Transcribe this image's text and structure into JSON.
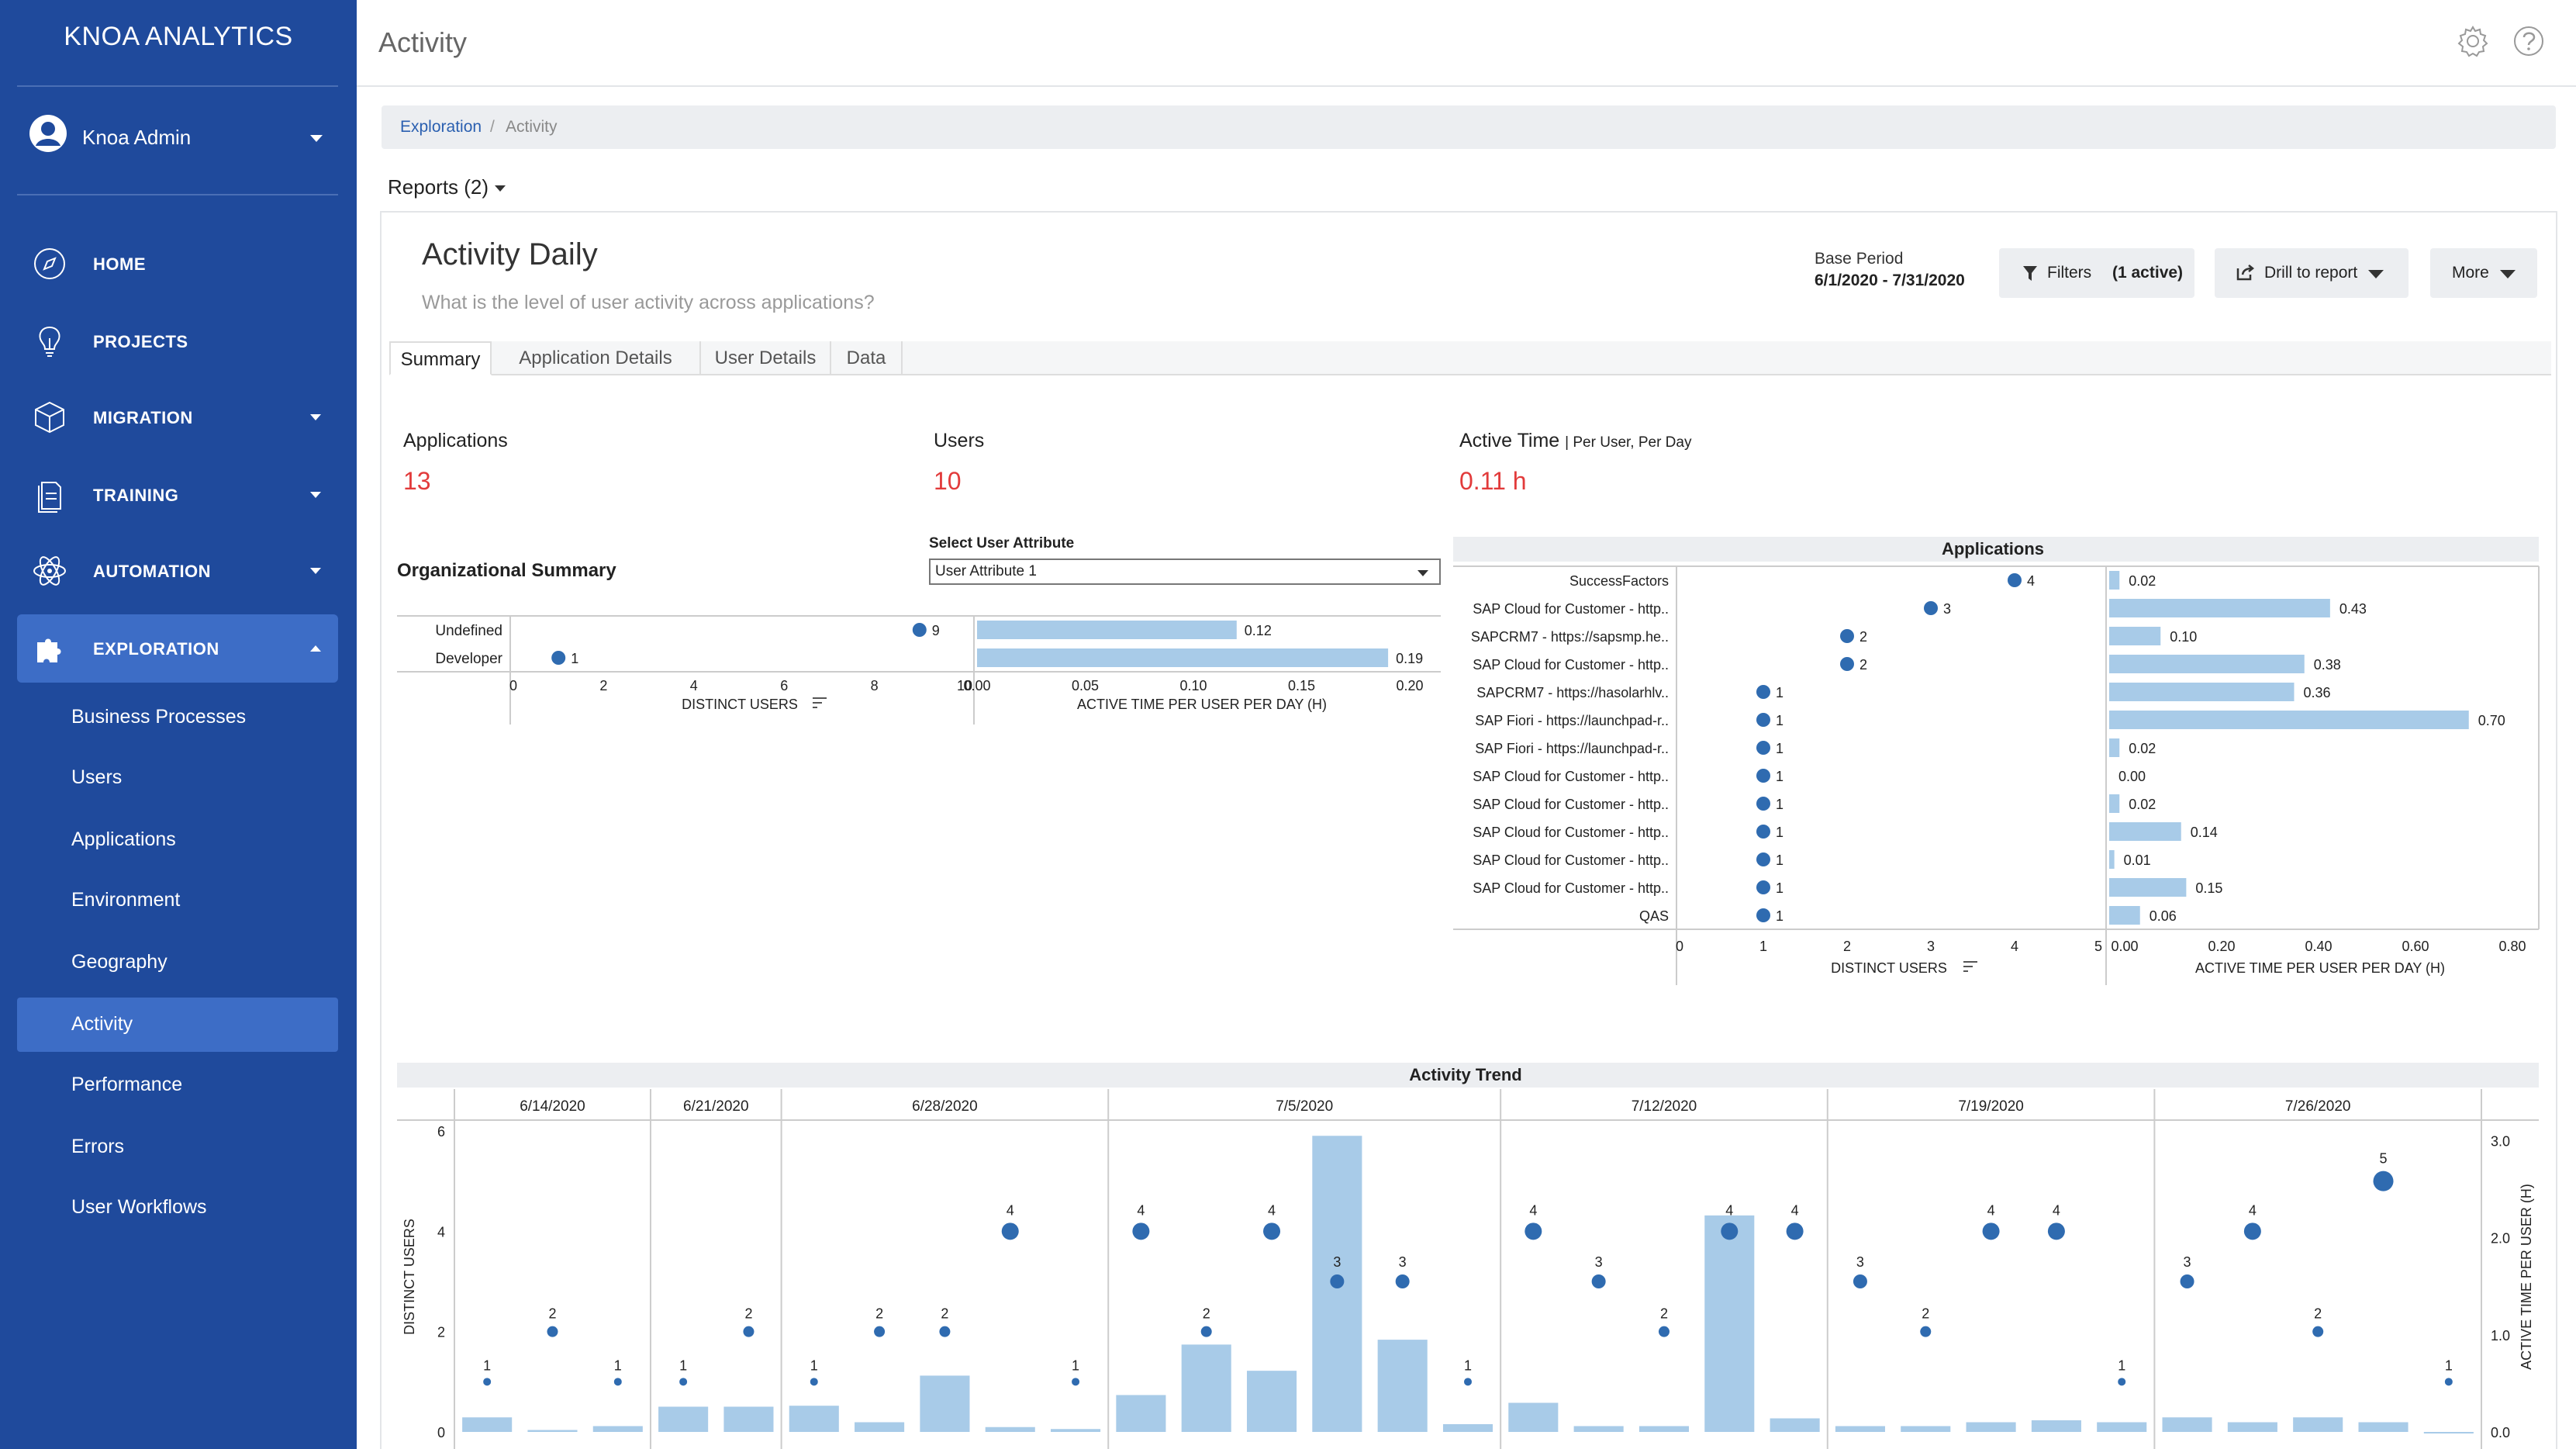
{
  "app": {
    "brand": "KNOA ANALYTICS",
    "user_name": "Knoa Admin"
  },
  "nav": [
    {
      "label": "HOME",
      "icon": "compass-icon"
    },
    {
      "label": "PROJECTS",
      "icon": "lightbulb-icon"
    },
    {
      "label": "MIGRATION",
      "icon": "cube-icon"
    },
    {
      "label": "TRAINING",
      "icon": "document-icon"
    },
    {
      "label": "AUTOMATION",
      "icon": "atom-icon"
    },
    {
      "label": "EXPLORATION",
      "icon": "puzzle-icon"
    }
  ],
  "subnav": [
    "Business Processes",
    "Users",
    "Applications",
    "Environment",
    "Geography",
    "Activity",
    "Performance",
    "Errors",
    "User Workflows"
  ],
  "topbar": {
    "title": "Activity"
  },
  "breadcrumb": {
    "first": "Exploration",
    "separator": "/",
    "current": "Activity"
  },
  "reports": {
    "label": "Reports (2)"
  },
  "report": {
    "title": "Activity Daily",
    "description": "What is the level of user activity across applications?",
    "base_period_label": "Base Period",
    "base_period_value": "6/1/2020 - 7/31/2020",
    "filters_label": "Filters",
    "filters_active": "(1 active)",
    "drill_label": "Drill to report",
    "more_label": "More"
  },
  "tabs": [
    "Summary",
    "Application Details",
    "User Details",
    "Data"
  ],
  "kpis": [
    {
      "label": "Applications",
      "value": "13"
    },
    {
      "label": "Users",
      "value": "10"
    },
    {
      "label": "Active Time",
      "sublabel": "| Per User, Per Day",
      "value": "0.11 h"
    }
  ],
  "org": {
    "title": "Organizational Summary",
    "select_label": "Select User Attribute",
    "select_value": "User Attribute 1"
  },
  "chart_data": [
    {
      "type": "bar",
      "title": "Organizational Summary",
      "categories": [
        "Undefined",
        "Developer"
      ],
      "series": [
        {
          "name": "DISTINCT USERS",
          "values": [
            9,
            1
          ]
        },
        {
          "name": "ACTIVE TIME PER USER PER DAY (H)",
          "values": [
            0.12,
            0.19
          ]
        }
      ],
      "xlabels": [
        "DISTINCT USERS",
        "ACTIVE TIME PER USER PER DAY (H)"
      ],
      "users_ticks": [
        "0",
        "2",
        "4",
        "6",
        "8",
        "10"
      ],
      "users_lim": [
        0,
        10
      ],
      "time_ticks": [
        "0.00",
        "0.05",
        "0.10",
        "0.15",
        "0.20"
      ],
      "time_lim": [
        0,
        0.2
      ]
    },
    {
      "type": "bar",
      "title": "Applications",
      "categories": [
        "SuccessFactors",
        "SAP Cloud for Customer - http..",
        "SAPCRM7 - https://sapsmp.he..",
        "SAP Cloud for Customer - http..",
        "SAPCRM7 - https://hasolarhlv..",
        "SAP Fiori - https://launchpad-r..",
        "SAP Fiori - https://launchpad-r..",
        "SAP Cloud for Customer - http..",
        "SAP Cloud for Customer - http..",
        "SAP Cloud for Customer - http..",
        "SAP Cloud for Customer - http..",
        "SAP Cloud for Customer - http..",
        "QAS"
      ],
      "series": [
        {
          "name": "DISTINCT USERS",
          "values": [
            4,
            3,
            2,
            2,
            1,
            1,
            1,
            1,
            1,
            1,
            1,
            1,
            1
          ]
        },
        {
          "name": "ACTIVE TIME PER USER PER DAY (H)",
          "values": [
            0.02,
            0.43,
            0.1,
            0.38,
            0.36,
            0.7,
            0.02,
            0.0,
            0.02,
            0.14,
            0.01,
            0.15,
            0.06
          ],
          "labels": [
            "0.02",
            "0.43",
            "0.10",
            "0.38",
            "0.36",
            "0.70",
            "0.02",
            "0.00",
            "0.02",
            "0.14",
            "0.01",
            "0.15",
            "0.06"
          ]
        }
      ],
      "xlabels": [
        "DISTINCT USERS",
        "ACTIVE TIME PER USER PER DAY (H)"
      ],
      "users_ticks": [
        "0",
        "1",
        "2",
        "3",
        "4",
        "5"
      ],
      "users_lim": [
        0,
        5
      ],
      "time_ticks": [
        "0.00",
        "0.20",
        "0.40",
        "0.60",
        "0.80"
      ],
      "time_lim": [
        0,
        0.8
      ]
    },
    {
      "type": "bar",
      "title": "Activity Trend",
      "weeks": [
        {
          "label": "6/14/2020",
          "days": 3
        },
        {
          "label": "6/21/2020",
          "days": 2
        },
        {
          "label": "6/28/2020",
          "days": 5
        },
        {
          "label": "7/5/2020",
          "days": 6
        },
        {
          "label": "7/12/2020",
          "days": 5
        },
        {
          "label": "7/19/2020",
          "days": 5
        },
        {
          "label": "7/26/2020",
          "days": 5
        }
      ],
      "users": [
        1,
        2,
        1,
        1,
        2,
        1,
        2,
        2,
        4,
        1,
        4,
        2,
        4,
        3,
        3,
        1,
        4,
        3,
        2,
        4,
        4,
        3,
        2,
        4,
        4,
        1,
        3,
        4,
        2,
        5,
        1
      ],
      "time": [
        0.15,
        0.02,
        0.06,
        0.26,
        0.26,
        0.27,
        0.1,
        0.58,
        0.05,
        0.03,
        0.38,
        0.9,
        0.63,
        3.05,
        0.95,
        0.08,
        0.3,
        0.06,
        0.06,
        2.23,
        0.14,
        0.06,
        0.06,
        0.1,
        0.12,
        0.1,
        0.15,
        0.1,
        0.15,
        0.1,
        0.0
      ],
      "ylabel": "DISTINCT USERS",
      "y2label": "ACTIVE TIME PER USER (H)",
      "users_ticks": [
        "0",
        "2",
        "4",
        "6"
      ],
      "users_lim": [
        0,
        6
      ],
      "time_ticks": [
        "0.0",
        "1.0",
        "2.0",
        "3.0"
      ],
      "time_lim": [
        0,
        3.1
      ]
    }
  ],
  "colors": {
    "sidebar": "#1f4a9c",
    "sidebar_active": "#3d6dc6",
    "dot": "#2f6bb0",
    "bar": "#a8cbe8",
    "kpi": "#e23b3b"
  }
}
